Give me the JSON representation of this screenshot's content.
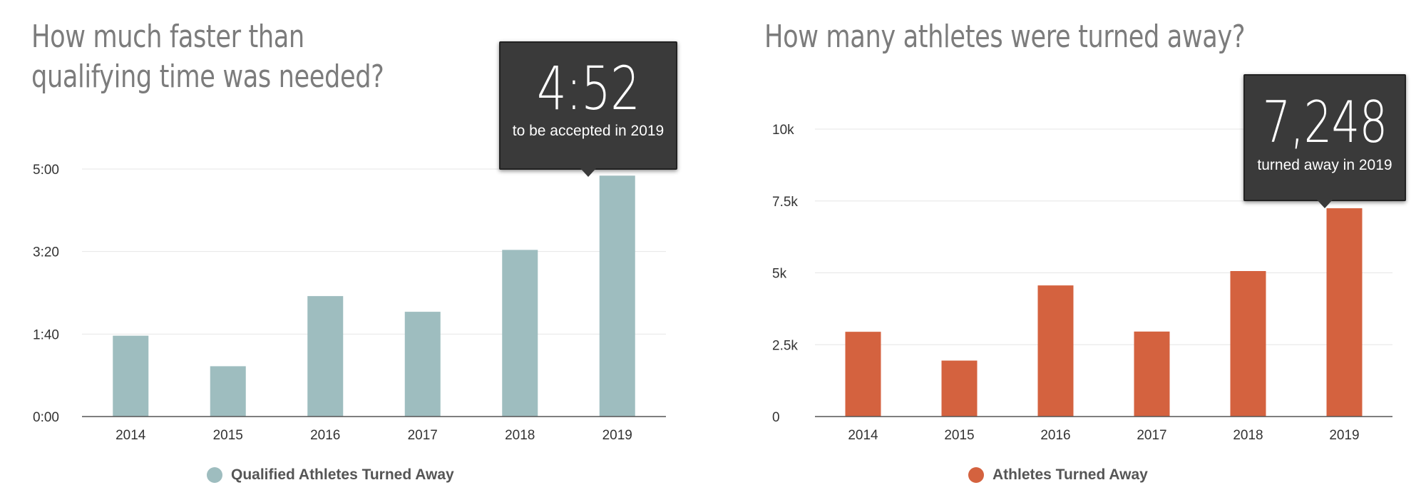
{
  "chart_data": [
    {
      "type": "bar",
      "title": "How much faster than\nqualifying time was needed?",
      "categories": [
        "2014",
        "2015",
        "2016",
        "2017",
        "2018",
        "2019"
      ],
      "series": [
        {
          "name": "Qualified Athletes Turned Away",
          "values": [
            98,
            61,
            146,
            127,
            202,
            292
          ]
        }
      ],
      "value_unit": "seconds",
      "ylim": [
        0,
        300
      ],
      "yticks": [
        0,
        100,
        200,
        300
      ],
      "ytick_labels": [
        "0:00",
        "1:40",
        "3:20",
        "5:00"
      ],
      "grid": true,
      "legend_position": "bottom-center",
      "color": "#9ebdbf",
      "tooltip": {
        "category": "2019",
        "value": "4:52",
        "text": "to be accepted in 2019"
      }
    },
    {
      "type": "bar",
      "title": "How many athletes were turned away?",
      "categories": [
        "2014",
        "2015",
        "2016",
        "2017",
        "2018",
        "2019"
      ],
      "series": [
        {
          "name": "Athletes Turned Away",
          "values": [
            2949,
            1947,
            4562,
            2957,
            5062,
            7248
          ]
        }
      ],
      "ylim": [
        0,
        10000
      ],
      "yticks": [
        0,
        2500,
        5000,
        7500,
        10000
      ],
      "ytick_labels": [
        "0",
        "2.5k",
        "5k",
        "7.5k",
        "10k"
      ],
      "grid": true,
      "legend_position": "bottom-center",
      "color": "#d4623f",
      "tooltip": {
        "category": "2019",
        "value": "7,248",
        "text": "turned away in 2019"
      }
    }
  ]
}
